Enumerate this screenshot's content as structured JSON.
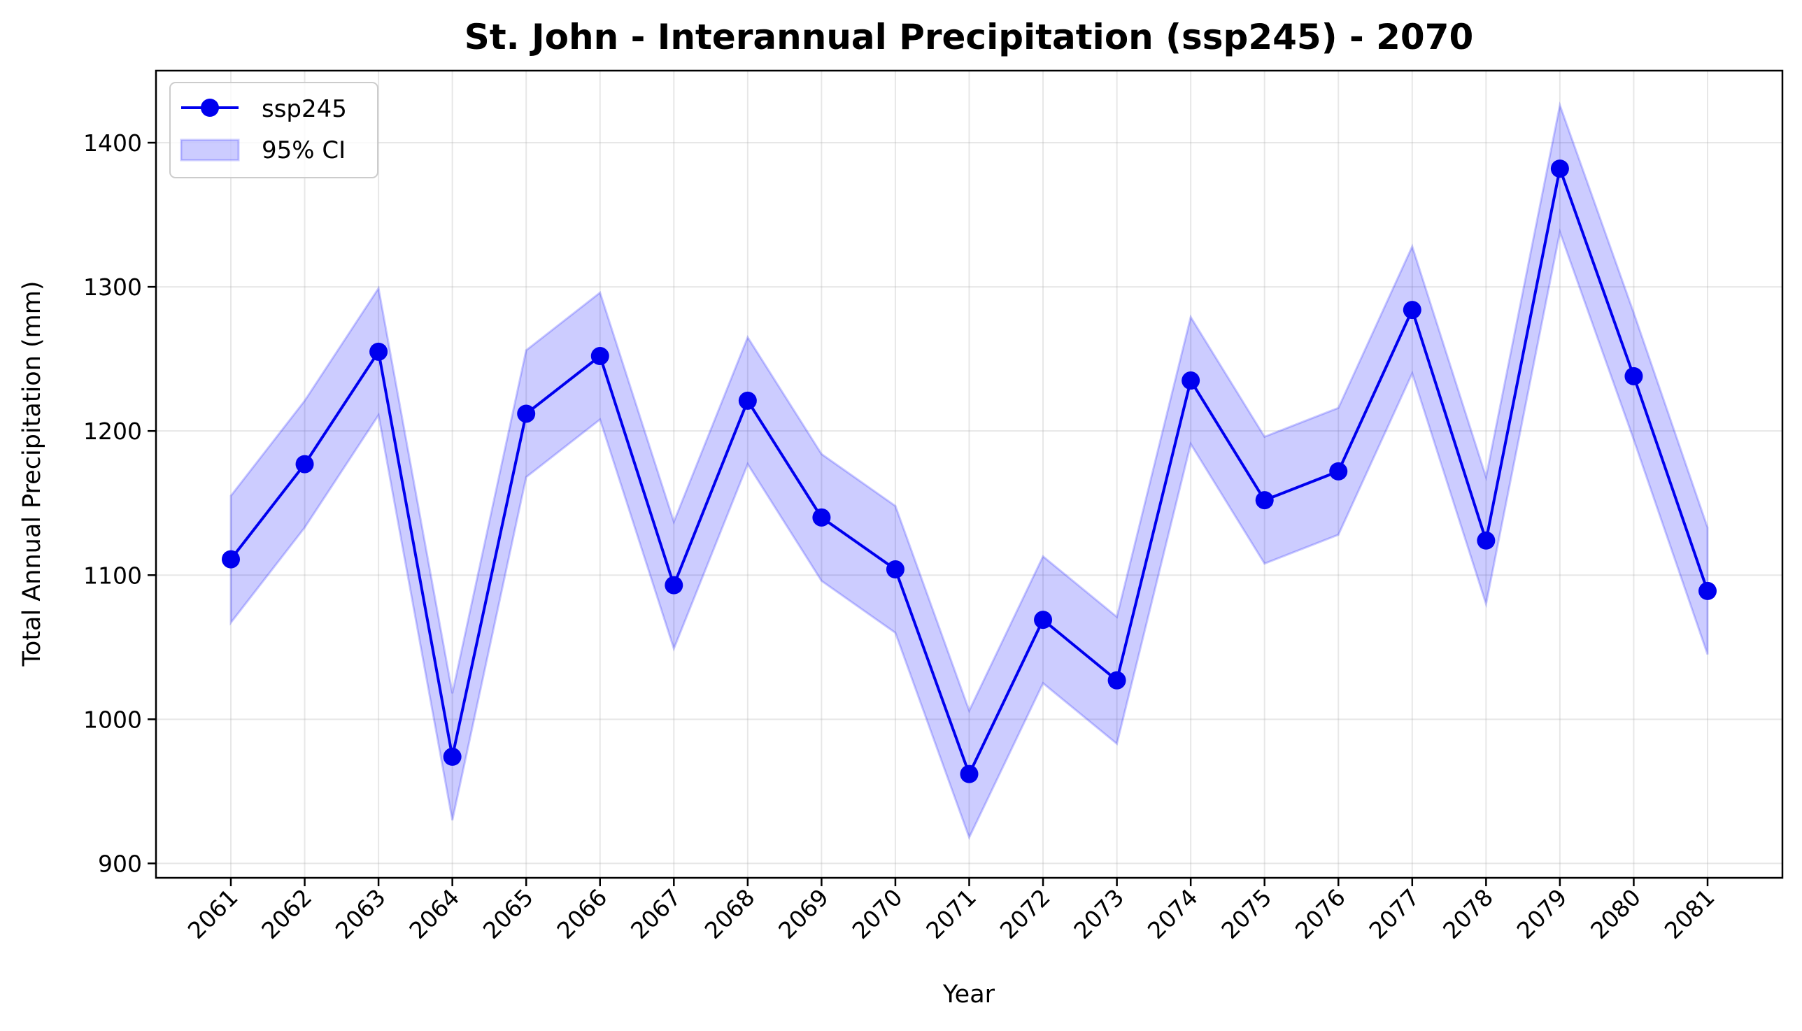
{
  "chart_data": {
    "type": "line",
    "title": "St. John - Interannual Precipitation (ssp245) - 2070",
    "xlabel": "Year",
    "ylabel": "Total Annual Precipitation (mm)",
    "x": [
      "2061",
      "2062",
      "2063",
      "2064",
      "2065",
      "2066",
      "2067",
      "2068",
      "2069",
      "2070",
      "2071",
      "2072",
      "2073",
      "2074",
      "2075",
      "2076",
      "2077",
      "2078",
      "2079",
      "2080",
      "2081"
    ],
    "series": [
      {
        "name": "ssp245",
        "color": "#0000ee",
        "values": [
          1111,
          1177,
          1255,
          974,
          1212,
          1252,
          1093,
          1221,
          1140,
          1104,
          962,
          1069,
          1027,
          1235,
          1152,
          1172,
          1284,
          1124,
          1382,
          1238,
          1089
        ]
      }
    ],
    "ci": {
      "name": "95% CI",
      "color": "#0000ff",
      "lower": [
        1067,
        1133,
        1211,
        930,
        1168,
        1208,
        1049,
        1177,
        1096,
        1060,
        918,
        1025,
        983,
        1191,
        1108,
        1128,
        1240,
        1080,
        1338,
        1194,
        1045
      ],
      "upper": [
        1155,
        1221,
        1299,
        1018,
        1256,
        1296,
        1137,
        1265,
        1184,
        1148,
        1006,
        1113,
        1071,
        1279,
        1196,
        1216,
        1328,
        1168,
        1426,
        1282,
        1133
      ]
    },
    "ylim": [
      890,
      1450
    ],
    "yticks": [
      900,
      1000,
      1100,
      1200,
      1300,
      1400
    ],
    "grid": true,
    "legend_position": "top-left"
  }
}
